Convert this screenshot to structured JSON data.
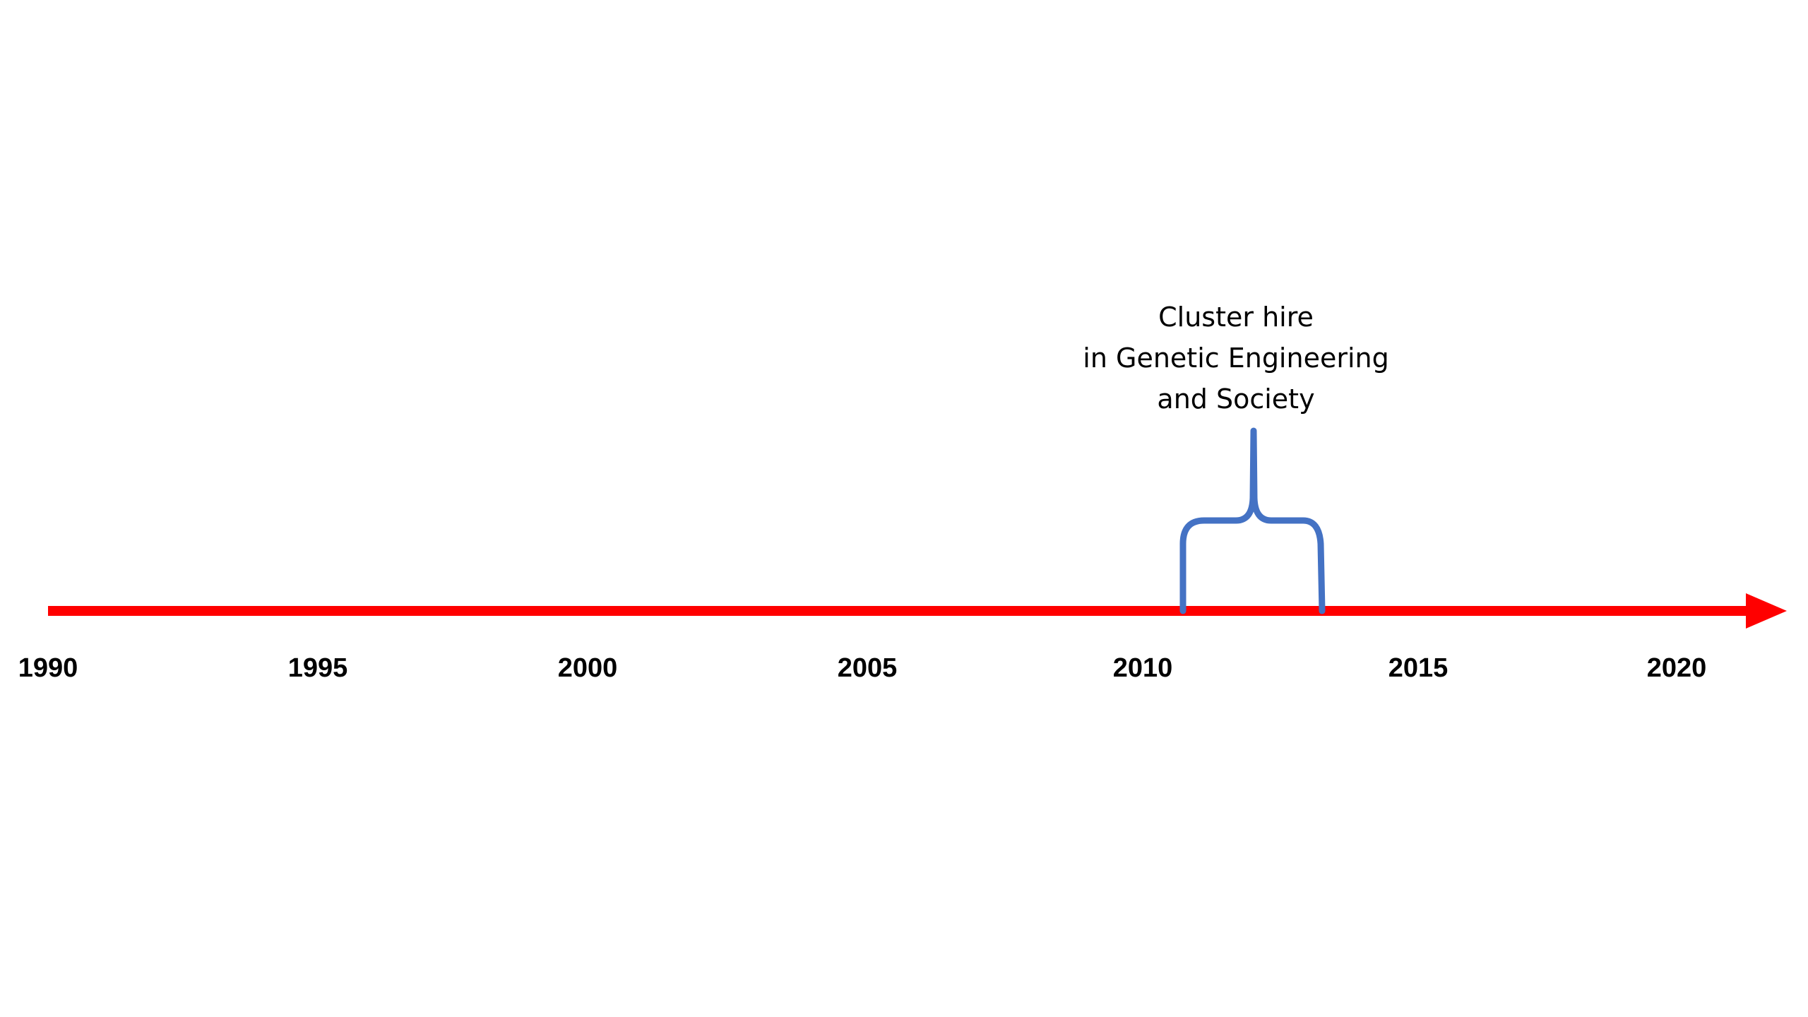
{
  "timeline": {
    "years": [
      "1990",
      "1995",
      "2000",
      "2005",
      "2010",
      "2015",
      "2020"
    ],
    "axis_color": "#ff0000",
    "event": {
      "lines": [
        "Cluster hire",
        "in Genetic Engineering",
        "and Society"
      ],
      "start_year": 2011,
      "end_year": 2013.5,
      "brace_color": "#4472c4"
    }
  }
}
